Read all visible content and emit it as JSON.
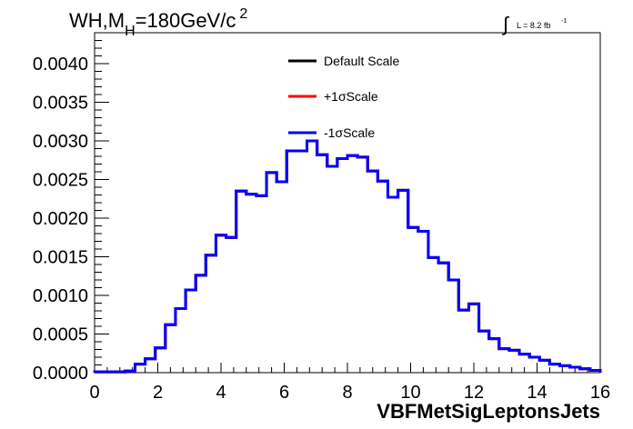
{
  "chart_data": {
    "type": "line",
    "title_main": "WH,M",
    "title_sub": "H",
    "title_value": "=180GeV/c",
    "title_sup": "2",
    "lumi_label": "L = 8.2 fb",
    "lumi_sup": "-1",
    "xlabel": "VBFMetSigLeptonsJets",
    "ylabel": "",
    "xlim": [
      0,
      16
    ],
    "ylim": [
      0,
      0.0044
    ],
    "x_ticks": [
      0,
      2,
      4,
      6,
      8,
      10,
      12,
      14,
      16
    ],
    "y_ticks": [
      0.0,
      0.0005,
      0.001,
      0.0015,
      0.002,
      0.0025,
      0.003,
      0.0035,
      0.004
    ],
    "x_tick_labels": [
      "0",
      "2",
      "4",
      "6",
      "8",
      "10",
      "12",
      "14",
      "16"
    ],
    "y_tick_labels": [
      "0.0000",
      "0.0005",
      "0.0010",
      "0.0015",
      "0.0020",
      "0.0025",
      "0.0030",
      "0.0035",
      "0.0040"
    ],
    "bin_width": 0.32,
    "bin_start": 0,
    "values": [
      1e-05,
      1e-05,
      1e-05,
      2e-05,
      0.00011,
      0.00018,
      0.00032,
      0.00062,
      0.00083,
      0.00107,
      0.00126,
      0.00152,
      0.00178,
      0.00175,
      0.00235,
      0.00231,
      0.00229,
      0.00259,
      0.00247,
      0.00287,
      0.00287,
      0.003,
      0.00282,
      0.00267,
      0.00277,
      0.00281,
      0.00279,
      0.00261,
      0.00248,
      0.00227,
      0.00236,
      0.00188,
      0.00183,
      0.00149,
      0.00142,
      0.0012,
      0.00081,
      0.00089,
      0.00054,
      0.00044,
      0.00031,
      0.00029,
      0.00024,
      0.0002,
      0.00016,
      0.00011,
      9e-05,
      7e-05,
      5e-05,
      3e-05
    ],
    "series": [
      {
        "name": "Default Scale",
        "color": "#000000"
      },
      {
        "name": "+1σScale",
        "color": "#ff0000"
      },
      {
        "name": "-1σScale",
        "color": "#0000ff"
      }
    ],
    "grid": false,
    "legend_position": "top-center"
  }
}
